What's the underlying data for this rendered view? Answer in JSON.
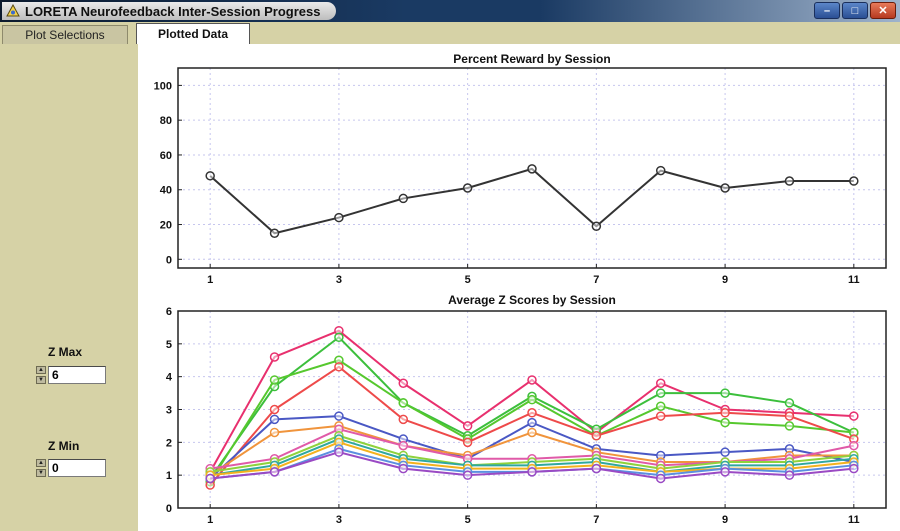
{
  "window": {
    "title": "LORETA Neurofeedback Inter-Session Progress"
  },
  "tabs": [
    {
      "label": "Plot Selections",
      "active": false
    },
    {
      "label": "Plotted Data",
      "active": true
    }
  ],
  "controls": {
    "zmax": {
      "label": "Z Max",
      "value": "6"
    },
    "zmin": {
      "label": "Z Min",
      "value": "0"
    }
  },
  "chart_data": [
    {
      "type": "line",
      "title": "Percent Reward by Session",
      "x": [
        1,
        2,
        3,
        4,
        5,
        6,
        7,
        8,
        9,
        10,
        11
      ],
      "x_ticks": [
        1,
        3,
        5,
        7,
        9,
        11
      ],
      "y_ticks": [
        0,
        20,
        40,
        60,
        80,
        100
      ],
      "xlim": [
        0.5,
        11.5
      ],
      "ylim": [
        -5,
        110
      ],
      "grid": true,
      "series": [
        {
          "color": "#333333",
          "values": [
            48,
            15,
            24,
            35,
            41,
            52,
            19,
            51,
            41,
            45,
            45
          ]
        }
      ]
    },
    {
      "type": "line",
      "title": "Average Z Scores by Session",
      "x": [
        1,
        2,
        3,
        4,
        5,
        6,
        7,
        8,
        9,
        10,
        11
      ],
      "x_ticks": [
        1,
        3,
        5,
        7,
        9,
        11
      ],
      "y_ticks": [
        0,
        1,
        2,
        3,
        4,
        5,
        6
      ],
      "xlim": [
        0.5,
        11.5
      ],
      "ylim": [
        0,
        6
      ],
      "grid": true,
      "series": [
        {
          "color": "#e8306e",
          "values": [
            1.1,
            4.6,
            5.4,
            3.8,
            2.5,
            3.9,
            2.3,
            3.8,
            3.0,
            2.9,
            2.8
          ]
        },
        {
          "color": "#3cbf3c",
          "values": [
            0.9,
            3.7,
            5.2,
            3.2,
            2.2,
            3.4,
            2.4,
            3.5,
            3.5,
            3.2,
            2.3
          ]
        },
        {
          "color": "#56c82e",
          "values": [
            0.8,
            3.9,
            4.5,
            3.2,
            2.1,
            3.3,
            2.2,
            3.1,
            2.6,
            2.5,
            2.3
          ]
        },
        {
          "color": "#ee4a4a",
          "values": [
            0.7,
            3.0,
            4.3,
            2.7,
            2.0,
            2.9,
            2.2,
            2.8,
            2.9,
            2.8,
            2.1
          ]
        },
        {
          "color": "#4a58c4",
          "values": [
            0.9,
            2.7,
            2.8,
            2.1,
            1.5,
            2.6,
            1.8,
            1.6,
            1.7,
            1.8,
            1.4
          ]
        },
        {
          "color": "#f0943c",
          "values": [
            1.0,
            2.3,
            2.5,
            1.9,
            1.6,
            2.3,
            1.7,
            1.4,
            1.4,
            1.6,
            1.6
          ]
        },
        {
          "color": "#e05aa8",
          "values": [
            1.2,
            1.5,
            2.4,
            1.9,
            1.5,
            1.5,
            1.6,
            1.3,
            1.4,
            1.5,
            1.9
          ]
        },
        {
          "color": "#8fd23c",
          "values": [
            1.1,
            1.4,
            2.2,
            1.6,
            1.3,
            1.4,
            1.5,
            1.2,
            1.4,
            1.4,
            1.6
          ]
        },
        {
          "color": "#2fa8a0",
          "values": [
            1.0,
            1.3,
            2.1,
            1.5,
            1.3,
            1.3,
            1.4,
            1.1,
            1.3,
            1.3,
            1.5
          ]
        },
        {
          "color": "#f3b21e",
          "values": [
            1.0,
            1.2,
            2.0,
            1.4,
            1.2,
            1.2,
            1.3,
            1.1,
            1.2,
            1.2,
            1.4
          ]
        },
        {
          "color": "#5b8fe0",
          "values": [
            0.9,
            1.1,
            1.8,
            1.3,
            1.1,
            1.1,
            1.2,
            1.0,
            1.2,
            1.1,
            1.3
          ]
        },
        {
          "color": "#9a4ac4",
          "values": [
            0.9,
            1.1,
            1.7,
            1.2,
            1.0,
            1.1,
            1.2,
            0.9,
            1.1,
            1.0,
            1.2
          ]
        }
      ]
    }
  ]
}
